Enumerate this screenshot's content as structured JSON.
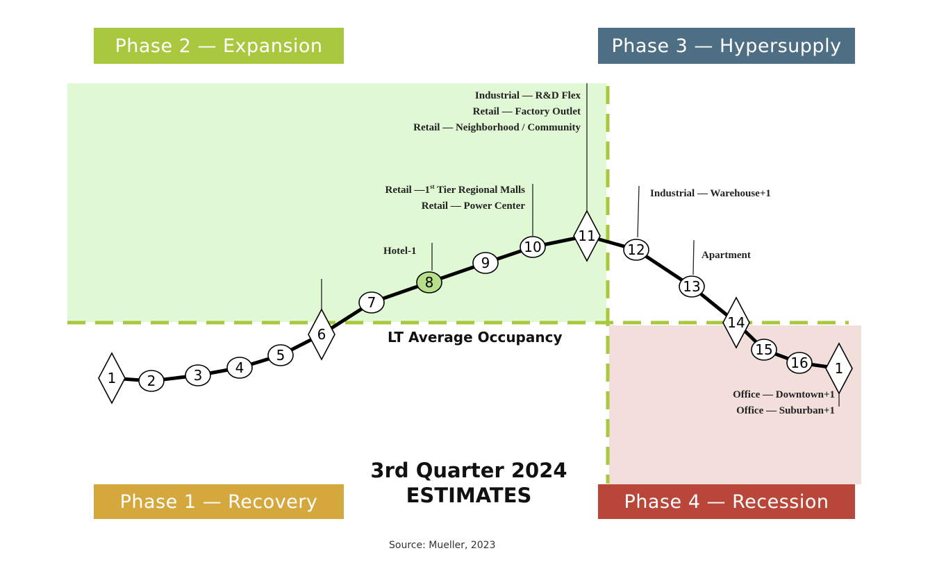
{
  "phases": {
    "phase1": "Phase 1 — Recovery",
    "phase2": "Phase 2 — Expansion",
    "phase3": "Phase 3 — Hypersupply",
    "phase4": "Phase 4 — Recession"
  },
  "title_line1": "3rd Quarter 2024",
  "title_line2": "ESTIMATES",
  "lt_average": "LT Average Occupancy",
  "source": "Source: Mueller, 2023",
  "points": [
    "1",
    "2",
    "3",
    "4",
    "5",
    "6",
    "7",
    "8",
    "9",
    "10",
    "11",
    "12",
    "13",
    "14",
    "15",
    "16",
    "1"
  ],
  "colors": {
    "expansion_bg": "#e1f8d5",
    "recession_bg": "#f2dedb",
    "dash": "#a9c73f",
    "highlight": "#b8e08a"
  },
  "labels": {
    "point11": [
      "Industrial — R&D Flex",
      "Retail — Factory Outlet",
      "Retail — Neighborhood / Community"
    ],
    "point10_a": "Retail —1",
    "point10_sup": "st",
    "point10_b": " Tier Regional Malls",
    "point10_c": "Retail — Power Center",
    "point8": "Hotel-1",
    "point12": "Industrial — Warehouse+1",
    "point13": "Apartment",
    "point1_end": [
      "Office — Downtown+1",
      "Office — Suburban+1"
    ]
  }
}
